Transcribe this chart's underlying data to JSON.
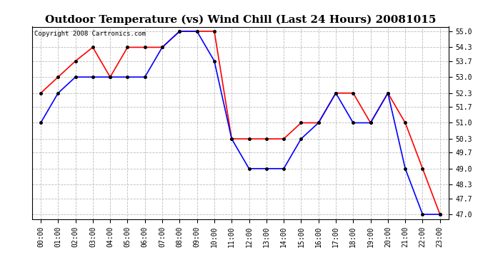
{
  "title": "Outdoor Temperature (vs) Wind Chill (Last 24 Hours) 20081015",
  "copyright": "Copyright 2008 Cartronics.com",
  "x_labels": [
    "00:00",
    "01:00",
    "02:00",
    "03:00",
    "04:00",
    "05:00",
    "06:00",
    "07:00",
    "08:00",
    "09:00",
    "10:00",
    "11:00",
    "12:00",
    "13:00",
    "14:00",
    "15:00",
    "16:00",
    "17:00",
    "18:00",
    "19:00",
    "20:00",
    "21:00",
    "22:00",
    "23:00"
  ],
  "temp_red": [
    52.3,
    53.0,
    53.7,
    54.3,
    53.0,
    54.3,
    54.3,
    54.3,
    55.0,
    55.0,
    55.0,
    50.3,
    50.3,
    50.3,
    50.3,
    51.0,
    51.0,
    52.3,
    52.3,
    51.0,
    52.3,
    51.0,
    49.0,
    47.0
  ],
  "temp_blue": [
    51.0,
    52.3,
    53.0,
    53.0,
    53.0,
    53.0,
    53.0,
    54.3,
    55.0,
    55.0,
    53.7,
    50.3,
    49.0,
    49.0,
    49.0,
    50.3,
    51.0,
    52.3,
    51.0,
    51.0,
    52.3,
    49.0,
    47.0,
    47.0
  ],
  "ylim_min": 47.0,
  "ylim_max": 55.0,
  "yticks": [
    47.0,
    47.7,
    48.3,
    49.0,
    49.7,
    50.3,
    51.0,
    51.7,
    52.3,
    53.0,
    53.7,
    54.3,
    55.0
  ],
  "red_color": "#ff0000",
  "blue_color": "#0000ff",
  "bg_color": "#ffffff",
  "plot_bg_color": "#ffffff",
  "grid_color": "#bbbbbb",
  "title_fontsize": 11,
  "copyright_fontsize": 6.5,
  "tick_fontsize": 7,
  "marker_size": 3
}
